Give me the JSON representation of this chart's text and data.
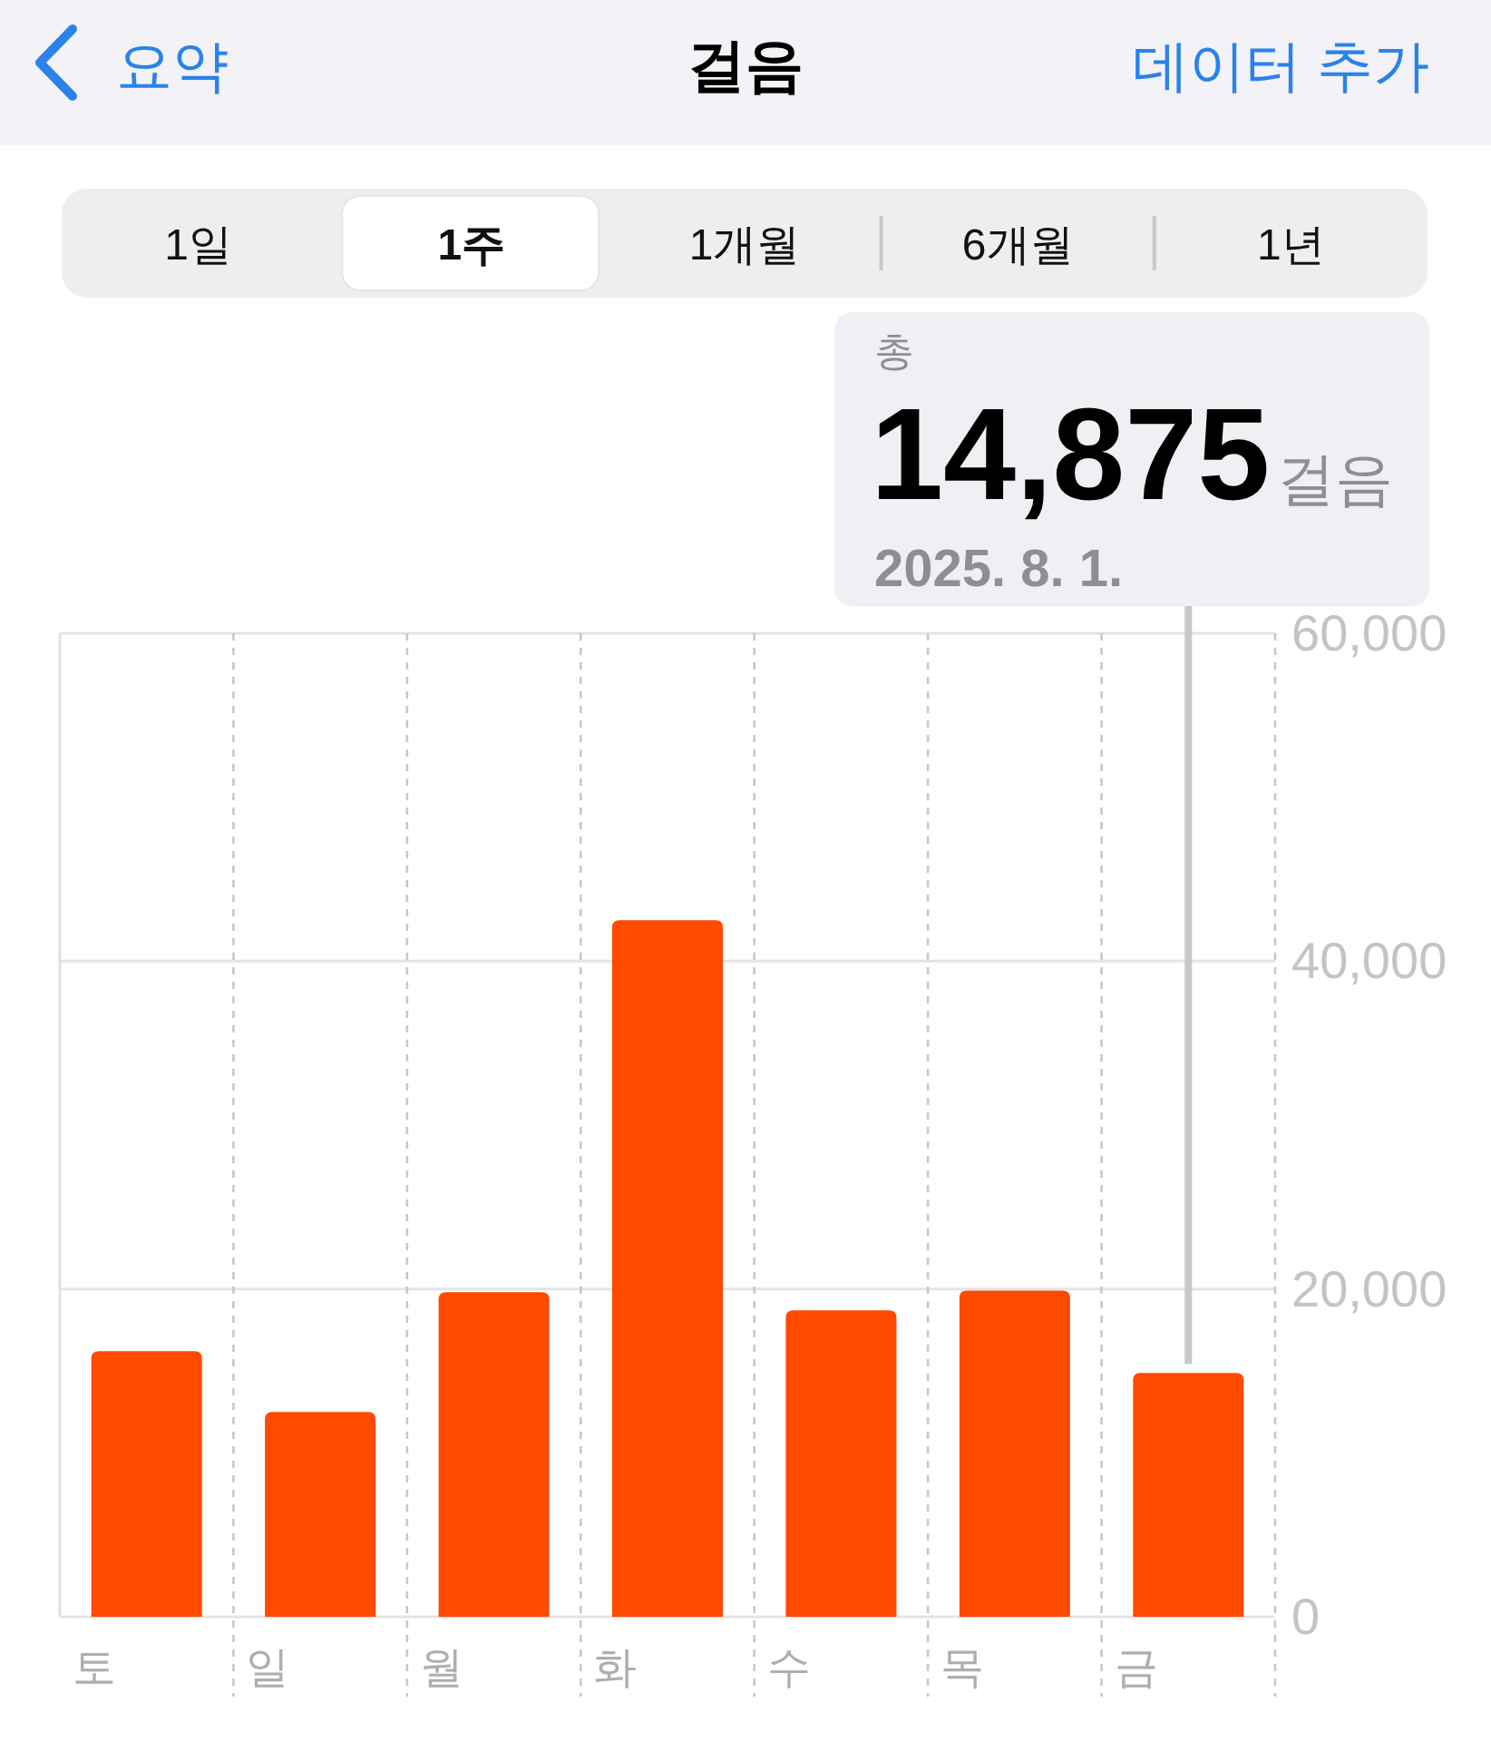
{
  "chart_data": {
    "type": "bar",
    "title": "걸음",
    "categories": [
      "토",
      "일",
      "월",
      "화",
      "수",
      "목",
      "금"
    ],
    "values": [
      16200,
      12500,
      19800,
      42500,
      18700,
      19900,
      14875
    ],
    "color": "#ff4a00",
    "ylim": [
      0,
      60000
    ],
    "yticks": [
      0,
      {
        "value": 20000,
        "label": "20,000"
      },
      {
        "value": 40000,
        "label": "40,000"
      },
      {
        "value": 60000,
        "label": "60,000"
      }
    ],
    "grid": true,
    "annotations": [
      "요약",
      "데이터 추가",
      "1일",
      "1주",
      "1개월",
      "6개월",
      "1년",
      "총",
      "14,875",
      "걸음",
      "2025. 8. 1."
    ]
  }
}
